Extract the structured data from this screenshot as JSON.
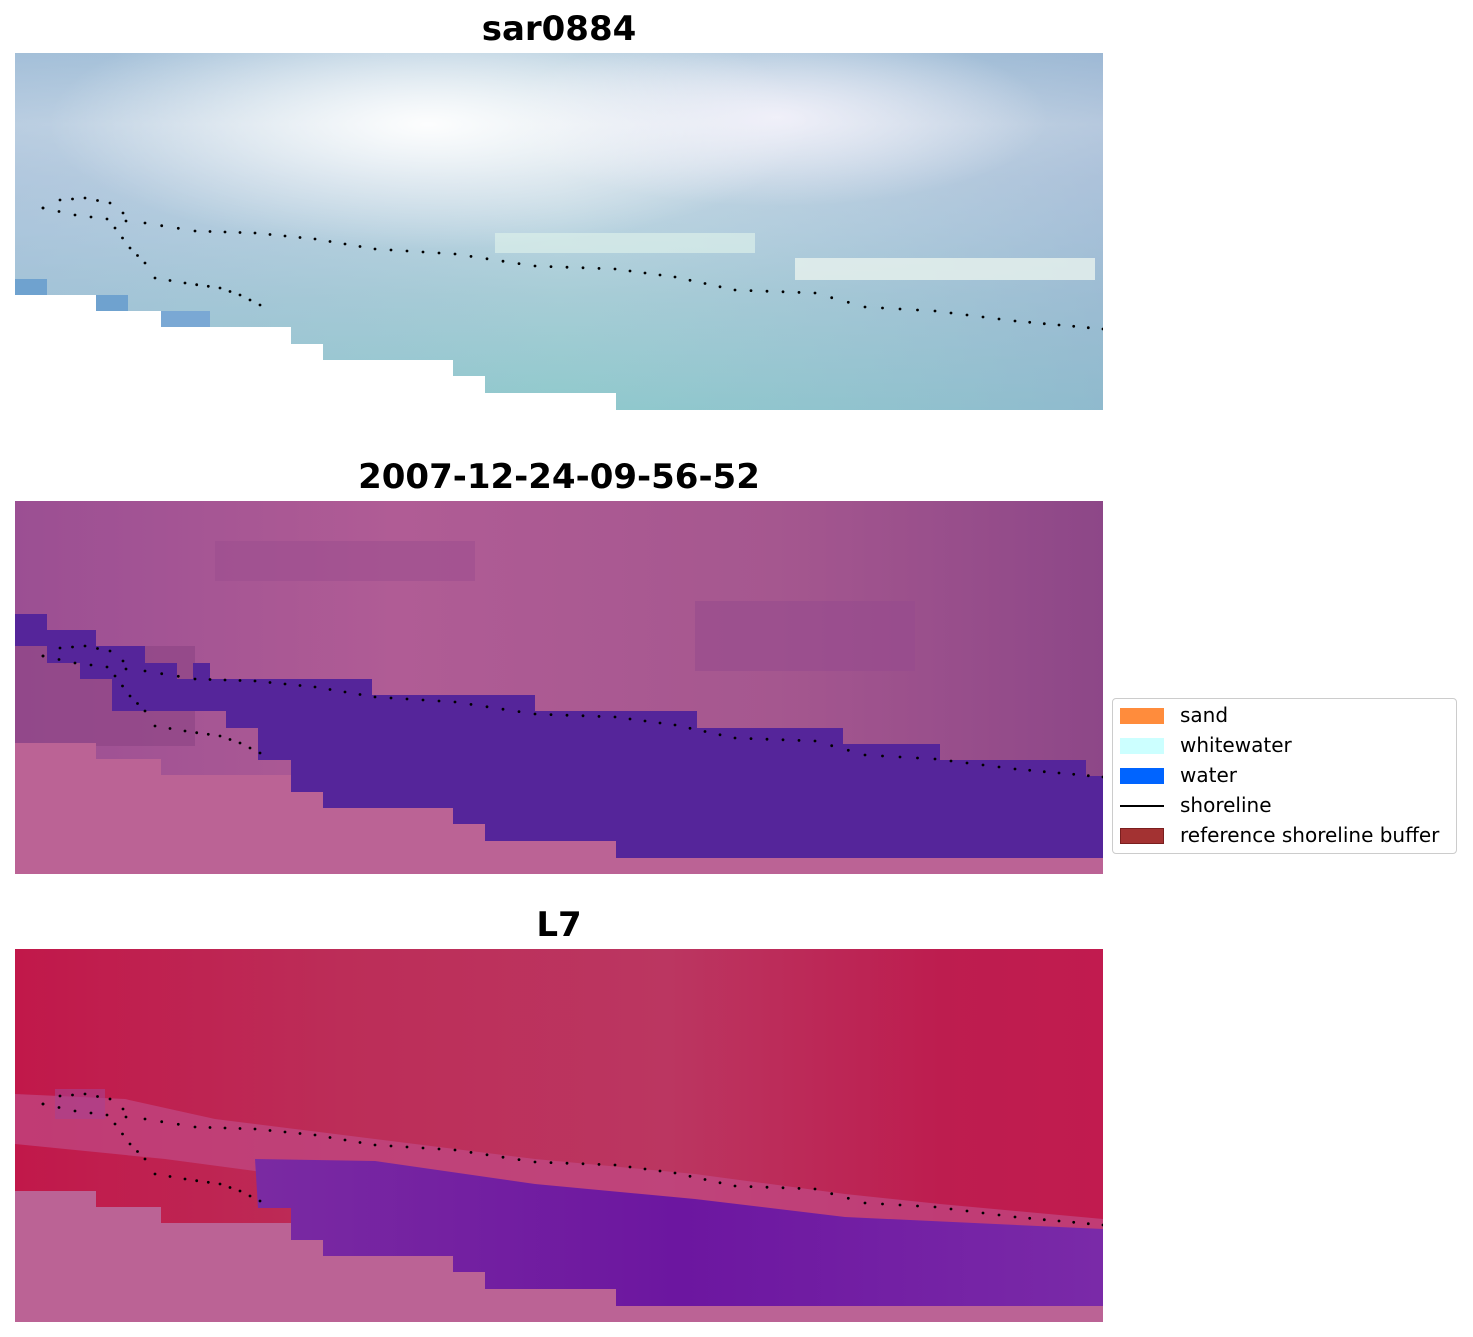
{
  "panels": [
    {
      "title": "sar0884"
    },
    {
      "title": "2007-12-24-09-56-52"
    },
    {
      "title": "L7"
    }
  ],
  "legend": {
    "items": [
      {
        "label": "sand",
        "color": "#ff8c3c",
        "kind": "patch"
      },
      {
        "label": "whitewater",
        "color": "#ccffff",
        "kind": "patch"
      },
      {
        "label": "water",
        "color": "#0064ff",
        "kind": "patch"
      },
      {
        "label": "shoreline",
        "color": "#000000",
        "kind": "line"
      },
      {
        "label": "reference shoreline buffer",
        "color": "#a33232",
        "kind": "patch"
      }
    ]
  }
}
